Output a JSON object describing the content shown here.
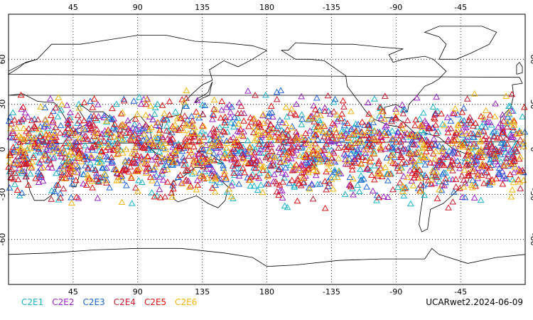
{
  "map": {
    "lon_ticks": [
      "45",
      "90",
      "135",
      "180",
      "-135",
      "-90",
      "-45"
    ],
    "lat_ticks": [
      "60",
      "30",
      "0",
      "-30",
      "-60"
    ],
    "lon_range": [
      0,
      360
    ],
    "lat_range": [
      -90,
      90
    ],
    "grid": "dotted"
  },
  "legend": [
    {
      "label": "C2E1",
      "color": "#19b2c8"
    },
    {
      "label": "C2E2",
      "color": "#9b1fc4"
    },
    {
      "label": "C2E3",
      "color": "#1e63d6"
    },
    {
      "label": "C2E4",
      "color": "#c8192d"
    },
    {
      "label": "C2E5",
      "color": "#e00f0f"
    },
    {
      "label": "C2E6",
      "color": "#f5b50f"
    }
  ],
  "credit": "UCARwet2.2024-06-09",
  "observations": {
    "marker": "open-triangle",
    "lat_extent": [
      -45,
      45
    ],
    "description_count_per_series": 380
  }
}
